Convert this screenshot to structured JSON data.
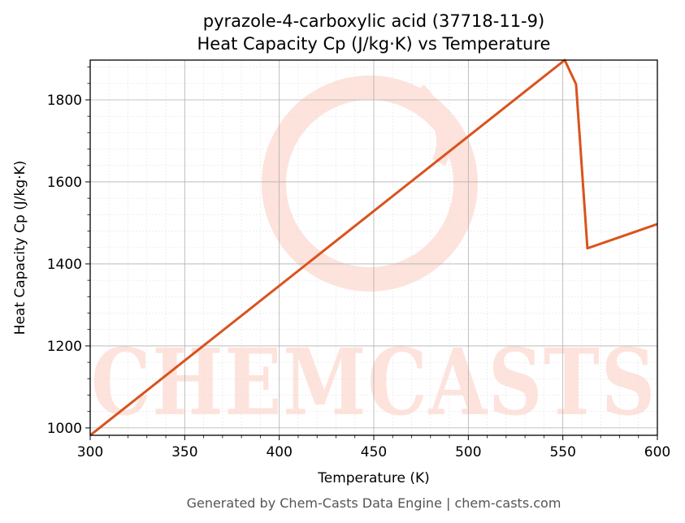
{
  "chart_data": {
    "type": "line",
    "title_line1": "pyrazole-4-carboxylic acid (37718-11-9)",
    "title_line2": "Heat Capacity Cp (J/kg·K) vs Temperature",
    "xlabel": "Temperature (K)",
    "ylabel": "Heat Capacity Cp (J/kg·K)",
    "xlim": [
      300,
      600
    ],
    "ylim": [
      982,
      1897
    ],
    "x_ticks": [
      300,
      350,
      400,
      450,
      500,
      550,
      600
    ],
    "y_ticks": [
      1000,
      1200,
      1400,
      1600,
      1800
    ],
    "grid": true,
    "series": [
      {
        "color": "#d9531e",
        "x": [
          300,
          551,
          557,
          563,
          600
        ],
        "y": [
          982,
          1897,
          1838,
          1438,
          1497
        ]
      }
    ]
  },
  "watermark": {
    "text": "CHEMCASTS",
    "color": "#fde3dc"
  },
  "footer": "Generated by Chem-Casts Data Engine | chem-casts.com"
}
